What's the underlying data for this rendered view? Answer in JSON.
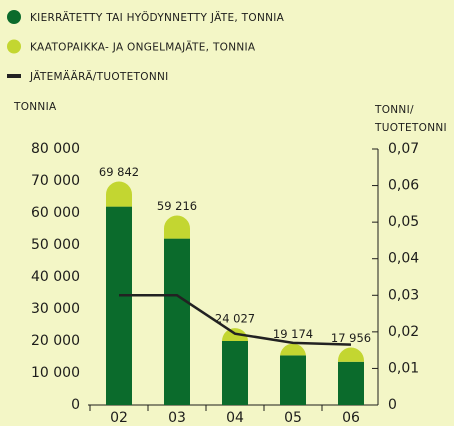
{
  "chart_data": {
    "type": "stacked-bar-line",
    "categories": [
      "02",
      "03",
      "04",
      "05",
      "06"
    ],
    "series": [
      {
        "name": "KIERRÄTETTY TAI HYÖDYNNETTY JÄTE, TONNIA",
        "color": "#0b6b2c",
        "values": [
          62000,
          52000,
          20000,
          15500,
          13500
        ]
      },
      {
        "name": "KAATOPAIKKA- JA ONGELMAJÄTE, TONNIA",
        "color": "#c3d631",
        "values": [
          7842,
          7216,
          4027,
          3674,
          4456
        ]
      },
      {
        "name": "JÄTEMÄÄRÄ/TUOTETONNI",
        "color": "#222222",
        "axis": "y2",
        "values": [
          0.03,
          0.03,
          0.0195,
          0.017,
          0.0165
        ]
      }
    ],
    "total_labels": [
      "69 842",
      "59 216",
      "24 027",
      "19 174",
      "17 956"
    ],
    "ylabel": "TONNIA",
    "y2label": [
      "TONNI/",
      "TUOTETONNI"
    ],
    "ylim": [
      0,
      80000
    ],
    "yticks": [
      0,
      {
        "value": 10000,
        "label": "10 000"
      },
      {
        "value": 20000,
        "label": "20 000"
      },
      {
        "value": 30000,
        "label": "30 000"
      },
      {
        "value": 40000,
        "label": "40 000"
      },
      {
        "value": 50000,
        "label": "50 000"
      },
      {
        "value": 60000,
        "label": "60 000"
      },
      {
        "value": 70000,
        "label": "70 000"
      },
      {
        "value": 80000,
        "label": "80 000"
      }
    ],
    "y2lim": [
      0,
      0.07
    ],
    "y2ticks": [
      0,
      {
        "value": 0.01,
        "label": "0,01"
      },
      {
        "value": 0.02,
        "label": "0,02"
      },
      {
        "value": 0.03,
        "label": "0,03"
      },
      {
        "value": 0.04,
        "label": "0,04"
      },
      {
        "value": 0.05,
        "label": "0,05"
      },
      {
        "value": 0.06,
        "label": "0,06"
      },
      {
        "value": 0.07,
        "label": "0,07"
      }
    ]
  }
}
